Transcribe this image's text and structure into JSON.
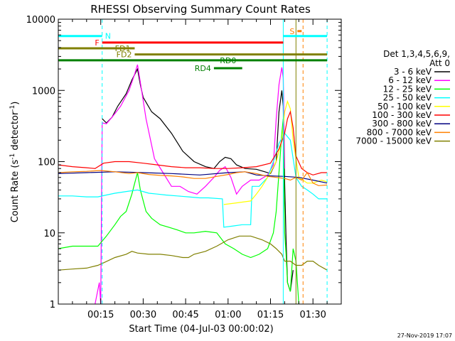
{
  "chart_data": {
    "type": "line",
    "title": "RHESSI Observing Summary Count Rates",
    "xlabel": "Start Time (04-Jul-03 00:00:02)",
    "ylabel_main": "Count Rate (s",
    "ylabel_sup1": "-1",
    "ylabel_mid": " detector",
    "ylabel_sup2": "-1",
    "ylabel_end": ")",
    "x_unit": "minutes after 04-Jul-03 00:00:02",
    "xlim": [
      0,
      100
    ],
    "ylim": [
      1,
      10000
    ],
    "y_scale": "log",
    "x_ticks": [
      {
        "value": 15,
        "label": "00:15"
      },
      {
        "value": 30,
        "label": "00:30"
      },
      {
        "value": 45,
        "label": "00:45"
      },
      {
        "value": 60,
        "label": "01:00"
      },
      {
        "value": 75,
        "label": "01:15"
      },
      {
        "value": 90,
        "label": "01:30"
      }
    ],
    "y_ticks": [
      {
        "value": 1,
        "label": "1"
      },
      {
        "value": 10,
        "label": "10"
      },
      {
        "value": 100,
        "label": "100"
      },
      {
        "value": 1000,
        "label": "1000"
      },
      {
        "value": 10000,
        "label": "10000"
      }
    ],
    "legend": {
      "title_line1": "Det 1,3,4,5,6,9,",
      "title_line2": "Att 0",
      "placement": "right"
    },
    "series": [
      {
        "name": "3 - 6 keV",
        "color": "#000000",
        "points": [
          [
            15.5,
            400
          ],
          [
            17,
            350
          ],
          [
            19,
            420
          ],
          [
            21,
            600
          ],
          [
            24,
            900
          ],
          [
            26,
            1400
          ],
          [
            28,
            2000
          ],
          [
            29,
            1200
          ],
          [
            30,
            800
          ],
          [
            33,
            500
          ],
          [
            36,
            400
          ],
          [
            40,
            250
          ],
          [
            44,
            140
          ],
          [
            48,
            100
          ],
          [
            52,
            85
          ],
          [
            55,
            80
          ],
          [
            57,
            100
          ],
          [
            59,
            115
          ],
          [
            61,
            110
          ],
          [
            63,
            90
          ],
          [
            66,
            80
          ],
          [
            70,
            78
          ],
          [
            73,
            72
          ],
          [
            75,
            68
          ],
          [
            77,
            100
          ],
          [
            78,
            500
          ],
          [
            79,
            1000
          ],
          [
            79.5,
            600
          ],
          [
            80,
            50
          ],
          [
            80.5,
            8
          ],
          [
            81,
            2
          ],
          [
            82,
            1.5
          ],
          [
            83,
            3
          ]
        ]
      },
      {
        "name": "6 - 12 keV",
        "color": "#ff00ff",
        "points": [
          [
            13,
            1
          ],
          [
            14.5,
            2
          ],
          [
            15,
            1
          ],
          [
            15.5,
            350
          ],
          [
            17,
            340
          ],
          [
            19,
            420
          ],
          [
            22,
            600
          ],
          [
            25,
            1000
          ],
          [
            27,
            1700
          ],
          [
            28,
            2300
          ],
          [
            29,
            1300
          ],
          [
            31,
            400
          ],
          [
            34,
            110
          ],
          [
            37,
            70
          ],
          [
            40,
            45
          ],
          [
            43,
            45
          ],
          [
            46,
            38
          ],
          [
            49,
            35
          ],
          [
            52,
            45
          ],
          [
            55,
            60
          ],
          [
            57,
            75
          ],
          [
            59,
            85
          ],
          [
            61,
            60
          ],
          [
            63,
            35
          ],
          [
            65,
            45
          ],
          [
            68,
            55
          ],
          [
            71,
            55
          ],
          [
            74,
            65
          ],
          [
            76,
            90
          ],
          [
            77,
            400
          ],
          [
            78,
            1200
          ],
          [
            79,
            2100
          ],
          [
            79.5,
            1500
          ],
          [
            80,
            80
          ]
        ]
      },
      {
        "name": "12 - 25 keV",
        "color": "#00ff00",
        "points": [
          [
            0,
            6
          ],
          [
            5,
            6.5
          ],
          [
            10,
            6.5
          ],
          [
            14,
            6.5
          ],
          [
            17,
            9
          ],
          [
            20,
            13
          ],
          [
            22,
            17
          ],
          [
            24,
            20
          ],
          [
            26,
            35
          ],
          [
            27,
            50
          ],
          [
            28,
            70
          ],
          [
            29,
            40
          ],
          [
            31,
            20
          ],
          [
            33,
            16
          ],
          [
            36,
            13
          ],
          [
            39,
            12
          ],
          [
            42,
            11
          ],
          [
            45,
            10
          ],
          [
            48,
            10
          ],
          [
            52,
            10.5
          ],
          [
            56,
            10
          ],
          [
            59,
            7
          ],
          [
            62,
            6
          ],
          [
            65,
            5
          ],
          [
            68,
            4.5
          ],
          [
            71,
            5
          ],
          [
            74,
            6
          ],
          [
            76,
            10
          ],
          [
            77,
            20
          ],
          [
            78,
            70
          ],
          [
            79,
            250
          ],
          [
            79.5,
            400
          ],
          [
            80,
            10
          ],
          [
            80.5,
            5
          ],
          [
            81,
            2
          ],
          [
            82,
            1.5
          ],
          [
            83,
            6
          ],
          [
            84,
            4
          ],
          [
            85,
            1
          ]
        ]
      },
      {
        "name": "25 - 50 keV",
        "color": "#00ffff",
        "points": [
          [
            0,
            33
          ],
          [
            5,
            33
          ],
          [
            10,
            32
          ],
          [
            14,
            32
          ],
          [
            17,
            34
          ],
          [
            20,
            36
          ],
          [
            24,
            38
          ],
          [
            28,
            40
          ],
          [
            32,
            36
          ],
          [
            35,
            35
          ],
          [
            38,
            34
          ],
          [
            42,
            33
          ],
          [
            46,
            32
          ],
          [
            50,
            31
          ],
          [
            53,
            31
          ],
          [
            58,
            30
          ],
          [
            58.5,
            12
          ],
          [
            62,
            12.5
          ],
          [
            65,
            13
          ],
          [
            68,
            13
          ],
          [
            68.5,
            45
          ],
          [
            71,
            45
          ],
          [
            74,
            60
          ],
          [
            76,
            100
          ],
          [
            78,
            180
          ],
          [
            80,
            250
          ],
          [
            82,
            200
          ],
          [
            84,
            60
          ],
          [
            86,
            45
          ],
          [
            88,
            40
          ],
          [
            90,
            35
          ],
          [
            92,
            30
          ],
          [
            95,
            30
          ]
        ]
      },
      {
        "name": "50 - 100 keV",
        "color": "#ffff00",
        "points": [
          [
            58.5,
            25
          ],
          [
            62,
            26
          ],
          [
            65,
            27
          ],
          [
            68,
            28
          ],
          [
            70,
            35
          ],
          [
            72,
            45
          ],
          [
            75,
            70
          ],
          [
            77,
            100
          ],
          [
            79,
            200
          ],
          [
            80,
            500
          ],
          [
            81,
            700
          ],
          [
            82,
            550
          ],
          [
            83,
            200
          ],
          [
            85,
            60
          ],
          [
            88,
            50
          ],
          [
            90,
            50
          ],
          [
            93,
            55
          ],
          [
            95,
            52
          ]
        ]
      },
      {
        "name": "100 - 300 keV",
        "color": "#ff0000",
        "points": [
          [
            0,
            90
          ],
          [
            5,
            85
          ],
          [
            10,
            82
          ],
          [
            13,
            80
          ],
          [
            16,
            95
          ],
          [
            20,
            100
          ],
          [
            25,
            100
          ],
          [
            30,
            95
          ],
          [
            35,
            90
          ],
          [
            40,
            85
          ],
          [
            45,
            82
          ],
          [
            50,
            82
          ],
          [
            55,
            80
          ],
          [
            60,
            80
          ],
          [
            65,
            82
          ],
          [
            70,
            85
          ],
          [
            75,
            95
          ],
          [
            78,
            150
          ],
          [
            80,
            250
          ],
          [
            81,
            400
          ],
          [
            82,
            500
          ],
          [
            83,
            300
          ],
          [
            84,
            120
          ],
          [
            86,
            80
          ],
          [
            88,
            70
          ],
          [
            90,
            65
          ],
          [
            93,
            70
          ],
          [
            95,
            70
          ]
        ]
      },
      {
        "name": "300 - 800 keV",
        "color": "#000080",
        "points": [
          [
            0,
            68
          ],
          [
            10,
            70
          ],
          [
            20,
            72
          ],
          [
            30,
            70
          ],
          [
            40,
            68
          ],
          [
            50,
            65
          ],
          [
            60,
            70
          ],
          [
            66,
            72
          ],
          [
            70,
            65
          ],
          [
            75,
            63
          ],
          [
            80,
            62
          ],
          [
            85,
            60
          ],
          [
            90,
            55
          ],
          [
            95,
            50
          ]
        ]
      },
      {
        "name": "800 - 7000 keV",
        "color": "#ff8000",
        "points": [
          [
            0,
            70
          ],
          [
            5,
            72
          ],
          [
            10,
            73
          ],
          [
            15,
            75
          ],
          [
            20,
            72
          ],
          [
            25,
            68
          ],
          [
            28,
            70
          ],
          [
            32,
            66
          ],
          [
            36,
            64
          ],
          [
            40,
            63
          ],
          [
            44,
            61
          ],
          [
            48,
            58
          ],
          [
            52,
            58
          ],
          [
            56,
            62
          ],
          [
            60,
            66
          ],
          [
            63,
            70
          ],
          [
            66,
            72
          ],
          [
            70,
            68
          ],
          [
            74,
            62
          ],
          [
            77,
            60
          ],
          [
            80,
            58
          ],
          [
            82,
            55
          ],
          [
            84,
            60
          ],
          [
            86,
            55
          ],
          [
            88,
            70
          ],
          [
            90,
            50
          ],
          [
            92,
            46
          ],
          [
            95,
            47
          ]
        ]
      },
      {
        "name": "7000 - 15000 keV",
        "color": "#808000",
        "points": [
          [
            0,
            3
          ],
          [
            5,
            3.1
          ],
          [
            10,
            3.2
          ],
          [
            14,
            3.5
          ],
          [
            16,
            3.8
          ],
          [
            20,
            4.5
          ],
          [
            24,
            5
          ],
          [
            26,
            5.5
          ],
          [
            28,
            5.2
          ],
          [
            32,
            5
          ],
          [
            36,
            5
          ],
          [
            40,
            4.8
          ],
          [
            44,
            4.5
          ],
          [
            46,
            4.5
          ],
          [
            48,
            5
          ],
          [
            52,
            5.5
          ],
          [
            56,
            6.5
          ],
          [
            60,
            8
          ],
          [
            64,
            9
          ],
          [
            68,
            9
          ],
          [
            72,
            8
          ],
          [
            75,
            7
          ],
          [
            77,
            6
          ],
          [
            79,
            5
          ],
          [
            80,
            4
          ],
          [
            82,
            4
          ],
          [
            84,
            3.5
          ],
          [
            86,
            3.5
          ],
          [
            88,
            4
          ],
          [
            90,
            4
          ],
          [
            92,
            3.5
          ],
          [
            95,
            3
          ]
        ]
      }
    ],
    "state_bars": [
      {
        "label": "N",
        "color": "#00ffff",
        "segments": [
          [
            0,
            15.5
          ],
          [
            79.5,
            95
          ]
        ],
        "value": 5800
      },
      {
        "label": "F",
        "color": "#ff0000",
        "segments": [
          [
            15.5,
            79.5
          ]
        ],
        "value": 4700
      },
      {
        "label": "FD1",
        "color": "#808000",
        "segments": [
          [
            0,
            27
          ]
        ],
        "value": 3900
      },
      {
        "label": "FD2",
        "color": "#808000",
        "segments": [
          [
            27,
            95
          ]
        ],
        "value": 3200
      },
      {
        "label": "RD0",
        "color": "#008000",
        "segments": [
          [
            0,
            95
          ]
        ],
        "value": 2650
      },
      {
        "label": "RD4",
        "color": "#008000",
        "segments": [
          [
            55,
            65
          ]
        ],
        "value": 2050
      },
      {
        "label": "S",
        "color": "#ff8000",
        "segments": [
          [
            84.5,
            86
          ]
        ],
        "value": 6800
      }
    ],
    "vlines": [
      {
        "x": 15.5,
        "color": "#00ffff",
        "style": "dashed"
      },
      {
        "x": 79.5,
        "color": "#00ffff",
        "style": "solid"
      },
      {
        "x": 84,
        "color": "#808000",
        "style": "solid"
      },
      {
        "x": 86.5,
        "color": "#ff8000",
        "style": "dashed"
      },
      {
        "x": 95,
        "color": "#00ffff",
        "style": "dashed"
      }
    ],
    "footer_date": "27-Nov-2019 17:07"
  }
}
